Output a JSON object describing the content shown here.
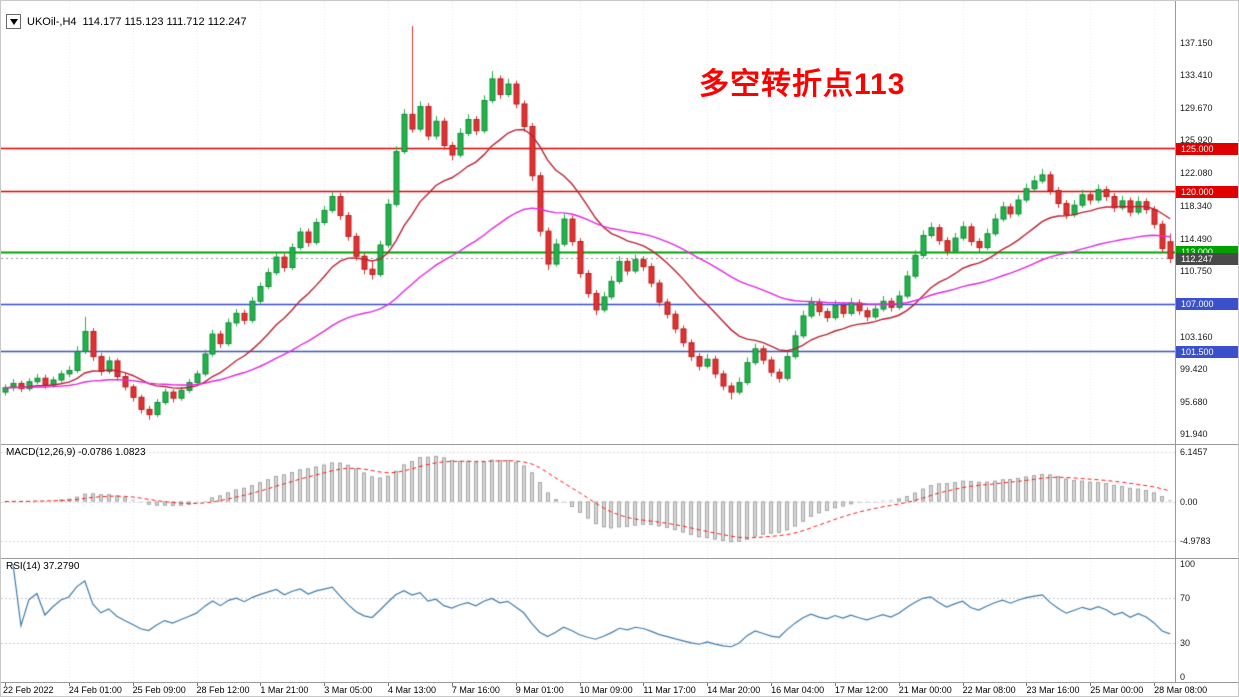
{
  "symbol_bar": {
    "symbol_tf": "UKOil-,H4",
    "ohlc": "114.177 115.123 111.712 112.247"
  },
  "annotation": {
    "text": "多空转折点113",
    "color": "#ff0000"
  },
  "chart_data": {
    "type": "candlestick",
    "symbol": "UKOil-",
    "timeframe": "H4",
    "price_range": [
      90.8,
      142.0
    ],
    "x_label_step": 8,
    "time_labels": [
      "22 Feb 2022",
      "24 Feb 01:00",
      "25 Feb 09:00",
      "28 Feb 12:00",
      "1 Mar 21:00",
      "3 Mar 05:00",
      "4 Mar 13:00",
      "7 Mar 16:00",
      "9 Mar 01:00",
      "10 Mar 09:00",
      "11 Mar 17:00",
      "14 Mar 20:00",
      "16 Mar 04:00",
      "17 Mar 12:00",
      "21 Mar 00:00",
      "22 Mar 08:00",
      "23 Mar 16:00",
      "25 Mar 00:00",
      "28 Mar 08:00"
    ],
    "price_axis_labels": [
      "137.150",
      "133.410",
      "129.670",
      "125.920",
      "122.080",
      "118.340",
      "114.490",
      "110.750",
      "103.160",
      "99.420",
      "95.680",
      "91.940"
    ],
    "levels": [
      {
        "price": 125.0,
        "color": "#e00000",
        "width": 1.4,
        "style": "solid",
        "badge": "125.000",
        "badge_color": "#e00000"
      },
      {
        "price": 120.0,
        "color": "#e00000",
        "width": 1.4,
        "style": "solid",
        "badge": "120.000",
        "badge_color": "#e00000"
      },
      {
        "price": 113.0,
        "color": "#00a000",
        "width": 2,
        "style": "solid",
        "badge": "113.000",
        "badge_color": "#00a000"
      },
      {
        "price": 112.247,
        "color": "#999999",
        "width": 1,
        "style": "dotted",
        "badge": "112.247",
        "badge_color": "#4a4a4a"
      },
      {
        "price": 107.0,
        "color": "#3a50cc",
        "width": 1.4,
        "style": "solid",
        "badge": "107.000",
        "badge_color": "#3a50cc"
      },
      {
        "price": 101.5,
        "color": "#3a50cc",
        "width": 1.4,
        "style": "solid",
        "badge": "101.500",
        "badge_color": "#3a50cc"
      }
    ],
    "colors": {
      "up": "#21b24b",
      "up_border": "#128a38",
      "down": "#e03232",
      "down_border": "#b51f1f",
      "grid": "#e7e7e7"
    },
    "ma_fast": {
      "period": 16,
      "color": "#bb2233"
    },
    "ma_slow": {
      "period": 48,
      "color": "#e128e1"
    },
    "macd": {
      "label_text": "MACD(12,26,9) -0.0786 1.0823",
      "fast": 12,
      "slow": 26,
      "signal_period": 9,
      "axis": [
        "6.1457",
        "0.00",
        "-4.9783"
      ],
      "value_range": [
        -7.05,
        7.05
      ],
      "bar_color": "#d6d6d6",
      "bar_border": "#a8a8a8",
      "signal_color": "#ff1a1a"
    },
    "rsi": {
      "label_text": "RSI(14) 37.2790",
      "period": 14,
      "axis": [
        "100",
        "70",
        "30",
        "0"
      ],
      "levels": [
        70,
        30
      ],
      "color": "#3f7cad"
    },
    "candles": [
      [
        96.8,
        97.7,
        96.4,
        97.3
      ],
      [
        97.3,
        98.3,
        96.9,
        97.8
      ],
      [
        97.8,
        98.1,
        96.8,
        97.2
      ],
      [
        97.2,
        98.4,
        96.9,
        98.0
      ],
      [
        98.0,
        98.9,
        97.7,
        98.4
      ],
      [
        98.4,
        98.8,
        97.2,
        97.6
      ],
      [
        97.6,
        98.6,
        97.3,
        98.2
      ],
      [
        98.2,
        99.3,
        97.9,
        98.9
      ],
      [
        98.9,
        99.8,
        98.5,
        99.3
      ],
      [
        99.3,
        102.1,
        99.0,
        101.5
      ],
      [
        101.5,
        105.5,
        101.2,
        103.8
      ],
      [
        103.8,
        104.2,
        100.4,
        100.9
      ],
      [
        100.9,
        101.3,
        98.7,
        99.2
      ],
      [
        99.2,
        100.9,
        98.9,
        100.4
      ],
      [
        100.4,
        100.7,
        98.1,
        98.6
      ],
      [
        98.6,
        99.0,
        97.0,
        97.4
      ],
      [
        97.4,
        97.7,
        95.7,
        96.2
      ],
      [
        96.2,
        96.5,
        94.3,
        94.8
      ],
      [
        94.8,
        95.2,
        93.6,
        94.2
      ],
      [
        94.2,
        96.0,
        93.9,
        95.6
      ],
      [
        95.6,
        97.2,
        95.3,
        96.8
      ],
      [
        96.8,
        97.1,
        95.6,
        96.1
      ],
      [
        96.1,
        97.4,
        95.8,
        97.0
      ],
      [
        97.0,
        98.3,
        96.7,
        97.9
      ],
      [
        97.9,
        99.3,
        97.5,
        98.9
      ],
      [
        98.9,
        101.7,
        98.6,
        101.2
      ],
      [
        101.2,
        104.0,
        100.9,
        103.5
      ],
      [
        103.5,
        103.9,
        101.9,
        102.4
      ],
      [
        102.4,
        105.3,
        102.1,
        104.8
      ],
      [
        104.8,
        106.4,
        104.4,
        105.9
      ],
      [
        105.9,
        106.3,
        104.6,
        105.1
      ],
      [
        105.1,
        107.8,
        104.8,
        107.3
      ],
      [
        107.3,
        109.5,
        107.0,
        109.0
      ],
      [
        109.0,
        111.1,
        108.7,
        110.6
      ],
      [
        110.6,
        112.9,
        110.3,
        112.4
      ],
      [
        112.4,
        112.8,
        110.7,
        111.2
      ],
      [
        111.2,
        114.0,
        110.9,
        113.5
      ],
      [
        113.5,
        115.8,
        113.2,
        115.3
      ],
      [
        115.3,
        115.7,
        113.6,
        114.1
      ],
      [
        114.1,
        116.9,
        113.8,
        116.4
      ],
      [
        116.4,
        118.3,
        116.1,
        117.8
      ],
      [
        117.8,
        119.9,
        117.5,
        119.4
      ],
      [
        119.4,
        119.8,
        116.7,
        117.2
      ],
      [
        117.2,
        117.6,
        114.3,
        114.8
      ],
      [
        114.8,
        115.2,
        112.0,
        112.5
      ],
      [
        112.5,
        112.9,
        110.4,
        111.0
      ],
      [
        111.0,
        111.9,
        109.8,
        110.4
      ],
      [
        110.4,
        114.3,
        110.1,
        113.8
      ],
      [
        113.8,
        119.1,
        113.5,
        118.5
      ],
      [
        118.5,
        125.2,
        118.2,
        124.6
      ],
      [
        124.6,
        129.5,
        124.3,
        128.9
      ],
      [
        128.9,
        139.1,
        126.8,
        127.2
      ],
      [
        127.2,
        130.4,
        126.9,
        129.8
      ],
      [
        129.8,
        130.2,
        125.9,
        126.4
      ],
      [
        126.4,
        128.7,
        126.0,
        128.1
      ],
      [
        128.1,
        128.5,
        124.8,
        125.3
      ],
      [
        125.3,
        125.7,
        123.6,
        124.2
      ],
      [
        124.2,
        127.3,
        123.9,
        126.7
      ],
      [
        126.7,
        128.9,
        126.4,
        128.3
      ],
      [
        128.3,
        128.7,
        126.5,
        127.0
      ],
      [
        127.0,
        131.1,
        126.7,
        130.5
      ],
      [
        130.5,
        133.9,
        130.2,
        133.0
      ],
      [
        133.0,
        133.4,
        130.7,
        131.2
      ],
      [
        131.2,
        133.0,
        130.9,
        132.4
      ],
      [
        132.4,
        132.8,
        129.6,
        130.1
      ],
      [
        130.1,
        130.5,
        126.9,
        127.5
      ],
      [
        127.5,
        127.9,
        121.2,
        121.8
      ],
      [
        121.8,
        122.2,
        114.8,
        115.4
      ],
      [
        115.4,
        115.8,
        110.9,
        111.6
      ],
      [
        111.6,
        114.5,
        111.3,
        113.9
      ],
      [
        113.9,
        117.4,
        113.6,
        116.8
      ],
      [
        116.8,
        117.2,
        113.7,
        114.2
      ],
      [
        114.2,
        114.6,
        110.0,
        110.5
      ],
      [
        110.5,
        110.9,
        107.7,
        108.2
      ],
      [
        108.2,
        108.6,
        105.7,
        106.3
      ],
      [
        106.3,
        108.4,
        106.0,
        107.8
      ],
      [
        107.8,
        110.2,
        107.5,
        109.6
      ],
      [
        109.6,
        112.5,
        109.3,
        111.9
      ],
      [
        111.9,
        112.3,
        110.3,
        110.8
      ],
      [
        110.8,
        112.7,
        110.5,
        112.1
      ],
      [
        112.1,
        112.5,
        110.8,
        111.3
      ],
      [
        111.3,
        111.7,
        108.9,
        109.4
      ],
      [
        109.4,
        109.8,
        106.7,
        107.2
      ],
      [
        107.2,
        107.6,
        105.3,
        105.8
      ],
      [
        105.8,
        106.2,
        103.6,
        104.1
      ],
      [
        104.1,
        104.5,
        102.0,
        102.5
      ],
      [
        102.5,
        102.9,
        100.4,
        100.9
      ],
      [
        100.9,
        101.3,
        99.3,
        99.8
      ],
      [
        99.8,
        101.2,
        99.5,
        100.6
      ],
      [
        100.6,
        101.0,
        98.4,
        98.9
      ],
      [
        98.9,
        99.3,
        97.0,
        97.5
      ],
      [
        97.5,
        97.9,
        95.95,
        96.8
      ],
      [
        96.8,
        98.5,
        96.5,
        97.9
      ],
      [
        97.9,
        100.8,
        97.6,
        100.2
      ],
      [
        100.2,
        102.4,
        99.9,
        101.8
      ],
      [
        101.8,
        102.2,
        100.0,
        100.5
      ],
      [
        100.5,
        100.9,
        98.6,
        99.1
      ],
      [
        99.1,
        99.5,
        97.9,
        98.4
      ],
      [
        98.4,
        101.5,
        98.1,
        100.9
      ],
      [
        100.9,
        103.9,
        100.6,
        103.3
      ],
      [
        103.3,
        106.2,
        103.0,
        105.6
      ],
      [
        105.6,
        107.8,
        105.3,
        107.2
      ],
      [
        107.2,
        107.6,
        105.6,
        106.1
      ],
      [
        106.1,
        106.5,
        104.9,
        105.4
      ],
      [
        105.4,
        107.4,
        105.1,
        106.8
      ],
      [
        106.8,
        107.2,
        105.4,
        105.9
      ],
      [
        105.9,
        107.7,
        105.6,
        107.1
      ],
      [
        107.1,
        107.5,
        105.7,
        106.2
      ],
      [
        106.2,
        106.6,
        105.0,
        105.5
      ],
      [
        105.5,
        107.0,
        105.2,
        106.4
      ],
      [
        106.4,
        107.9,
        106.1,
        107.3
      ],
      [
        107.3,
        107.7,
        106.1,
        106.6
      ],
      [
        106.6,
        108.5,
        106.3,
        107.9
      ],
      [
        107.9,
        110.8,
        107.6,
        110.2
      ],
      [
        110.2,
        113.2,
        109.9,
        112.6
      ],
      [
        112.6,
        115.5,
        112.3,
        114.9
      ],
      [
        114.9,
        116.4,
        114.6,
        115.8
      ],
      [
        115.8,
        116.2,
        113.8,
        114.3
      ],
      [
        114.3,
        114.7,
        112.6,
        113.1
      ],
      [
        113.1,
        115.2,
        112.8,
        114.6
      ],
      [
        114.6,
        116.5,
        114.3,
        115.9
      ],
      [
        115.9,
        116.3,
        113.7,
        114.2
      ],
      [
        114.2,
        114.6,
        113.0,
        113.5
      ],
      [
        113.5,
        115.7,
        113.2,
        115.1
      ],
      [
        115.1,
        117.4,
        114.8,
        116.8
      ],
      [
        116.8,
        118.8,
        116.5,
        118.2
      ],
      [
        118.2,
        118.6,
        116.9,
        117.4
      ],
      [
        117.4,
        119.6,
        117.1,
        119.0
      ],
      [
        119.0,
        120.9,
        118.7,
        120.3
      ],
      [
        120.3,
        121.8,
        120.0,
        121.2
      ],
      [
        121.2,
        122.6,
        120.9,
        121.9
      ],
      [
        121.9,
        122.3,
        119.6,
        120.1
      ],
      [
        120.1,
        120.5,
        118.1,
        118.6
      ],
      [
        118.6,
        119.0,
        116.8,
        117.3
      ],
      [
        117.3,
        119.0,
        117.0,
        118.4
      ],
      [
        118.4,
        120.2,
        118.1,
        119.6
      ],
      [
        119.6,
        120.0,
        118.5,
        119.0
      ],
      [
        119.0,
        120.8,
        118.7,
        120.2
      ],
      [
        120.2,
        120.6,
        118.9,
        119.4
      ],
      [
        119.4,
        119.8,
        117.6,
        118.1
      ],
      [
        118.1,
        119.5,
        117.8,
        118.9
      ],
      [
        118.9,
        119.3,
        117.1,
        117.6
      ],
      [
        117.6,
        119.4,
        117.3,
        118.8
      ],
      [
        118.8,
        119.2,
        117.4,
        117.9
      ],
      [
        117.9,
        118.3,
        115.7,
        116.2
      ],
      [
        116.2,
        116.6,
        112.9,
        113.4
      ],
      [
        114.177,
        115.123,
        111.712,
        112.247
      ]
    ]
  }
}
